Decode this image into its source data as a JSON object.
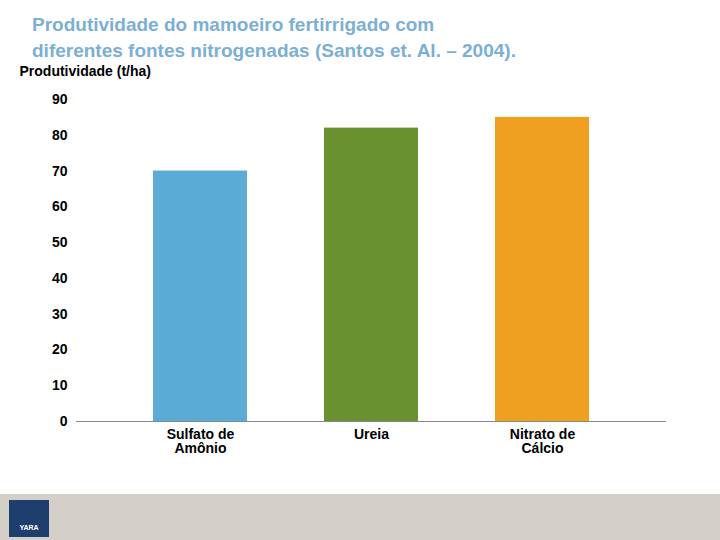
{
  "chart_data": {
    "type": "bar",
    "title": "Produtividade do mamoeiro fertirrigado com\ndiferentes fontes nitrogenadas (Santos et. Al. – 2004).",
    "y_label": "Produtividade (t/ha)",
    "categories": [
      "Sulfato de\nAmônio",
      "Ureia",
      "Nitrato de\nCálcio"
    ],
    "values": [
      70,
      82,
      85
    ],
    "colors": [
      "#5aabd5",
      "#6a9130",
      "#f0a020"
    ],
    "ylim": [
      0,
      90
    ],
    "yticks": [
      0,
      10,
      20,
      30,
      40,
      50,
      60,
      70,
      80,
      90
    ],
    "grid": false,
    "annotations": [
      "YARA"
    ]
  }
}
